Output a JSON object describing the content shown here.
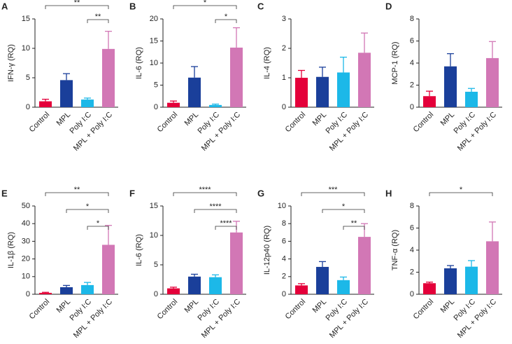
{
  "chart_data": [
    {
      "type": "bar",
      "panel": "A",
      "ylabel": "IFN-γ (RQ)",
      "categories": [
        "Control",
        "MPL",
        "Poly I:C",
        "MPL + Poly I:C"
      ],
      "colors": [
        "#e4003a",
        "#1a3f9a",
        "#1cb8e8",
        "#d277b5"
      ],
      "values": [
        1.0,
        4.6,
        1.3,
        9.9
      ],
      "errors": [
        0.35,
        1.1,
        0.25,
        3.0
      ],
      "ylim": [
        0,
        15
      ],
      "yticks": [
        0,
        5,
        10,
        15
      ],
      "annotations": [
        {
          "between": [
            0,
            3
          ],
          "label": "**"
        },
        {
          "between": [
            2,
            3
          ],
          "label": "**"
        }
      ]
    },
    {
      "type": "bar",
      "panel": "B",
      "ylabel": "IL-6 (RQ)",
      "categories": [
        "Control",
        "MPL",
        "Poly I:C",
        "MPL + Poly I:C"
      ],
      "colors": [
        "#e4003a",
        "#1a3f9a",
        "#1cb8e8",
        "#d277b5"
      ],
      "values": [
        1.0,
        6.7,
        0.5,
        13.5
      ],
      "errors": [
        0.4,
        2.5,
        0.2,
        4.5
      ],
      "ylim": [
        0,
        20
      ],
      "yticks": [
        0,
        5,
        10,
        15,
        20
      ],
      "annotations": [
        {
          "between": [
            0,
            3
          ],
          "label": "*"
        },
        {
          "between": [
            2,
            3
          ],
          "label": "*"
        }
      ]
    },
    {
      "type": "bar",
      "panel": "C",
      "ylabel": "IL-4 (RQ)",
      "categories": [
        "Control",
        "MPL",
        "Poly I:C",
        "MPL + Poly I:C"
      ],
      "colors": [
        "#e4003a",
        "#1a3f9a",
        "#1cb8e8",
        "#d277b5"
      ],
      "values": [
        1.0,
        1.03,
        1.18,
        1.85
      ],
      "errors": [
        0.25,
        0.33,
        0.52,
        0.67
      ],
      "ylim": [
        0,
        3
      ],
      "yticks": [
        0,
        1,
        2,
        3
      ],
      "annotations": []
    },
    {
      "type": "bar",
      "panel": "D",
      "ylabel": "MCP-1 (RQ)",
      "categories": [
        "Control",
        "MPL",
        "Poly I:C",
        "MPL + Poly I:C"
      ],
      "colors": [
        "#e4003a",
        "#1a3f9a",
        "#1cb8e8",
        "#d277b5"
      ],
      "values": [
        1.0,
        3.7,
        1.4,
        4.45
      ],
      "errors": [
        0.45,
        1.15,
        0.3,
        1.5
      ],
      "ylim": [
        0,
        8
      ],
      "yticks": [
        0,
        2,
        4,
        6,
        8
      ],
      "annotations": []
    },
    {
      "type": "bar",
      "panel": "E",
      "ylabel": "IL-1β (RQ)",
      "categories": [
        "Control",
        "MPL",
        "Poly I:C",
        "MPL + Poly I:C"
      ],
      "colors": [
        "#e4003a",
        "#1a3f9a",
        "#1cb8e8",
        "#d277b5"
      ],
      "values": [
        0.8,
        4.0,
        5.2,
        28
      ],
      "errors": [
        0.3,
        1.0,
        1.5,
        11
      ],
      "ylim": [
        0,
        50
      ],
      "yticks": [
        0,
        10,
        20,
        30,
        40,
        50
      ],
      "annotations": [
        {
          "between": [
            0,
            3
          ],
          "label": "**"
        },
        {
          "between": [
            1,
            3
          ],
          "label": "*"
        },
        {
          "between": [
            2,
            3
          ],
          "label": "*"
        }
      ]
    },
    {
      "type": "bar",
      "panel": "F",
      "ylabel": "IL-6 (RQ)",
      "categories": [
        "Control",
        "MPL",
        "Poly I:C",
        "MPL + Poly I:C"
      ],
      "colors": [
        "#e4003a",
        "#1a3f9a",
        "#1cb8e8",
        "#d277b5"
      ],
      "values": [
        1.0,
        3.0,
        2.9,
        10.5
      ],
      "errors": [
        0.2,
        0.4,
        0.4,
        1.9
      ],
      "ylim": [
        0,
        15
      ],
      "yticks": [
        0,
        5,
        10,
        15
      ],
      "annotations": [
        {
          "between": [
            0,
            3
          ],
          "label": "****"
        },
        {
          "between": [
            1,
            3
          ],
          "label": "****"
        },
        {
          "between": [
            2,
            3
          ],
          "label": "****"
        }
      ]
    },
    {
      "type": "bar",
      "panel": "G",
      "ylabel": "IL-12p40 (RQ)",
      "categories": [
        "Control",
        "MPL",
        "Poly I:C",
        "MPL + Poly I:C"
      ],
      "colors": [
        "#e4003a",
        "#1a3f9a",
        "#1cb8e8",
        "#d277b5"
      ],
      "values": [
        1.0,
        3.1,
        1.6,
        6.5
      ],
      "errors": [
        0.2,
        0.6,
        0.35,
        1.5
      ],
      "ylim": [
        0,
        10
      ],
      "yticks": [
        0,
        2,
        4,
        6,
        8,
        10
      ],
      "annotations": [
        {
          "between": [
            0,
            3
          ],
          "label": "***"
        },
        {
          "between": [
            1,
            3
          ],
          "label": "*"
        },
        {
          "between": [
            2,
            3
          ],
          "label": "**"
        }
      ]
    },
    {
      "type": "bar",
      "panel": "H",
      "ylabel": "TNF-α (RQ)",
      "categories": [
        "Control",
        "MPL",
        "Poly I:C",
        "MPL + Poly I:C"
      ],
      "colors": [
        "#e4003a",
        "#1a3f9a",
        "#1cb8e8",
        "#d277b5"
      ],
      "values": [
        1.0,
        2.35,
        2.5,
        4.8
      ],
      "errors": [
        0.1,
        0.25,
        0.55,
        1.75
      ],
      "ylim": [
        0,
        8
      ],
      "yticks": [
        0,
        2,
        4,
        6,
        8
      ],
      "annotations": [
        {
          "between": [
            0,
            3
          ],
          "label": "*"
        }
      ]
    }
  ]
}
